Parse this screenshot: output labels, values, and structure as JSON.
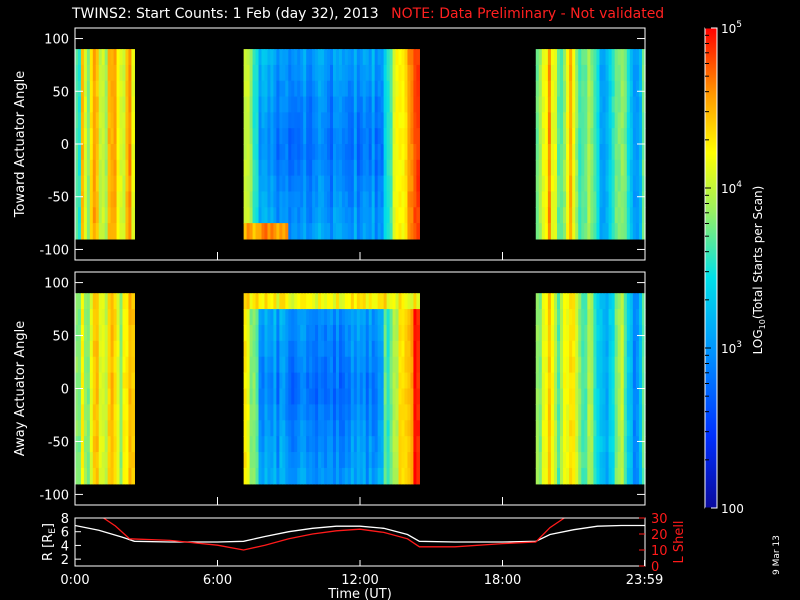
{
  "title": {
    "main": "TWINS2: Start Counts:  1 Feb (day  32), 2013",
    "note": "NOTE: Data Preliminary - Not validated"
  },
  "stamp": "9 Mar 13",
  "colors": {
    "background": "#000000",
    "axis": "#ffffff",
    "note_text": "#ff2020",
    "r_line": "#ffffff",
    "lshell_line": "#ff1a1a"
  },
  "chart_data": [
    {
      "type": "heatmap",
      "ylabel": "Toward Actuator Angle",
      "ylim": [
        -110,
        110
      ],
      "yticks": [
        "100",
        "50",
        "0",
        "-50",
        "-100"
      ],
      "y_ticks_values": [
        100,
        50,
        0,
        -50,
        -100
      ],
      "xlim": [
        0,
        24
      ],
      "angle_range": [
        -90,
        90
      ],
      "data_intervals_hours": [
        [
          0,
          2.5
        ],
        [
          7.1,
          14.5
        ],
        [
          19.4,
          24
        ]
      ],
      "grid": false
    },
    {
      "type": "heatmap",
      "ylabel": "Away Actuator Angle",
      "ylim": [
        -110,
        110
      ],
      "yticks": [
        "100",
        "50",
        "0",
        "-50",
        "-100"
      ],
      "y_ticks_values": [
        100,
        50,
        0,
        -50,
        -100
      ],
      "xlim": [
        0,
        24
      ],
      "angle_range": [
        -90,
        90
      ],
      "data_intervals_hours": [
        [
          0,
          2.5
        ],
        [
          7.1,
          14.5
        ],
        [
          19.4,
          24
        ]
      ],
      "grid": false
    },
    {
      "type": "line",
      "xlabel": "Time (UT)",
      "xticks": [
        "0:00",
        "6:00",
        "12:00",
        "18:00",
        "23:59"
      ],
      "x_ticks_values": [
        0,
        6,
        12,
        18,
        23.98
      ],
      "xlim": [
        0,
        24
      ],
      "left_axis": {
        "label": "R [R",
        "label_sub": "E",
        "label_end": "]",
        "ylim": [
          1,
          8
        ],
        "yticks": [
          "2",
          "4",
          "6",
          "8"
        ],
        "y_ticks_values": [
          2,
          4,
          6,
          8
        ]
      },
      "right_axis": {
        "label": "L Shell",
        "ylim": [
          0,
          30
        ],
        "yticks": [
          "0",
          "10",
          "20",
          "30"
        ],
        "y_ticks_values": [
          0,
          10,
          20,
          30
        ]
      },
      "series": [
        {
          "axis": "left",
          "color": "white",
          "x": [
            0,
            1,
            2,
            2.5,
            4,
            6,
            7.1,
            8,
            9,
            10,
            11,
            12,
            13,
            14,
            14.5,
            16,
            18,
            19.4,
            20,
            21,
            22,
            23,
            24
          ],
          "y": [
            6.9,
            6.2,
            5.2,
            4.6,
            4.5,
            4.5,
            4.6,
            5.3,
            6.0,
            6.5,
            6.8,
            6.8,
            6.5,
            5.6,
            4.6,
            4.5,
            4.5,
            4.6,
            5.6,
            6.3,
            6.8,
            6.9,
            6.9
          ]
        },
        {
          "axis": "right",
          "color": "red",
          "x": [
            1.2,
            1.7,
            2.3,
            4,
            6,
            7.1,
            8,
            9,
            10,
            11,
            12,
            13,
            14,
            14.5,
            16,
            18,
            19.4,
            20,
            20.6
          ],
          "y": [
            30,
            25,
            17,
            16,
            13,
            10,
            13,
            17,
            20,
            22,
            23,
            21,
            17,
            12,
            12,
            14,
            15,
            24,
            30
          ]
        }
      ]
    }
  ],
  "colorbar": {
    "label_parts": {
      "pre": "LOG",
      "sub": "10",
      "post": "(Total Starts per Scan)"
    },
    "ticks": [
      {
        "base": "10",
        "exp": "5",
        "value": 100000
      },
      {
        "base": "10",
        "exp": "4",
        "value": 10000
      },
      {
        "base": "10",
        "exp": "3",
        "value": 1000
      },
      {
        "base": "100",
        "exp": "",
        "value": 100
      }
    ],
    "range": [
      100,
      100000
    ],
    "scale": "log"
  }
}
